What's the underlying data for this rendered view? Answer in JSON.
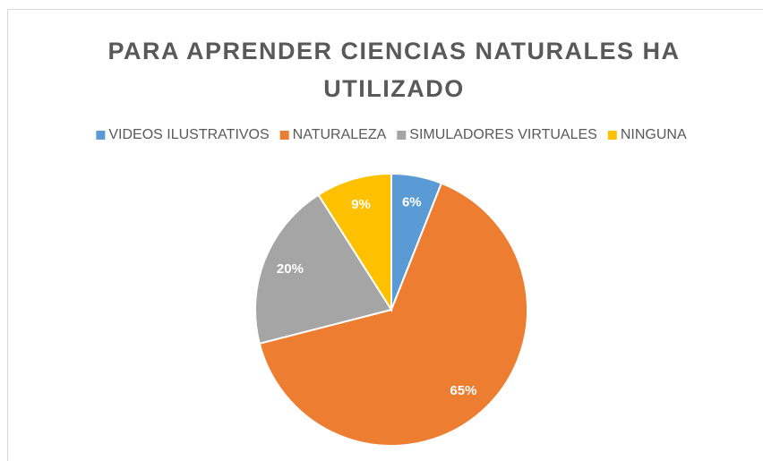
{
  "chart_data": {
    "type": "pie",
    "title": "PARA APRENDER CIENCIAS NATURALES HA UTILIZADO",
    "categories": [
      "VIDEOS ILUSTRATIVOS",
      "NATURALEZA",
      "SIMULADORES VIRTUALES",
      "NINGUNA"
    ],
    "values": [
      6,
      65,
      20,
      9
    ],
    "value_labels": [
      "6%",
      "65%",
      "20%",
      "9%"
    ],
    "colors": [
      "#5b9bd5",
      "#ed7d31",
      "#a5a5a5",
      "#ffc000"
    ],
    "legend": "top"
  }
}
